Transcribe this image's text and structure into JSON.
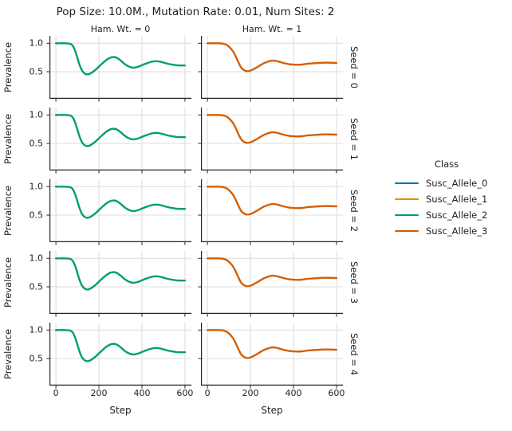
{
  "chart_data": {
    "type": "line",
    "title": "Pop Size: 10.0M., Mutation Rate: 0.01, Num Sites: 2",
    "xlabel": "Step",
    "ylabel": "Prevalence",
    "xlim": [
      -30,
      630
    ],
    "ylim": [
      0.025,
      1.13
    ],
    "xticks": [
      0,
      200,
      400,
      600
    ],
    "xtick_labels": [
      "0",
      "200",
      "400",
      "600"
    ],
    "yticks": [
      1.0,
      0.5
    ],
    "ytick_labels": [
      "1.0",
      "0.5"
    ],
    "grid": true,
    "legend_position": "right",
    "col_facets": [
      {
        "label": "Ham. Wt. = 0",
        "series": "Susc_Allele_2"
      },
      {
        "label": "Ham. Wt. = 1",
        "series": "Susc_Allele_3"
      }
    ],
    "row_facets": [
      "Seed = 0",
      "Seed = 1",
      "Seed = 2",
      "Seed = 3",
      "Seed = 4"
    ],
    "legend": {
      "title": "Class",
      "entries": [
        {
          "label": "Susc_Allele_0",
          "color": "#0173b2"
        },
        {
          "label": "Susc_Allele_1",
          "color": "#de8f05"
        },
        {
          "label": "Susc_Allele_2",
          "color": "#029e73"
        },
        {
          "label": "Susc_Allele_3",
          "color": "#d55e00"
        }
      ]
    },
    "x": [
      0,
      20,
      40,
      60,
      70,
      80,
      90,
      100,
      110,
      120,
      130,
      140,
      150,
      160,
      180,
      200,
      220,
      240,
      260,
      280,
      300,
      320,
      340,
      360,
      380,
      400,
      420,
      440,
      460,
      480,
      500,
      520,
      540,
      560,
      580,
      600
    ],
    "series": [
      {
        "name": "Susc_Allele_2",
        "color": "#029e73",
        "values": [
          1.0,
          1.0,
          1.0,
          0.995,
          0.985,
          0.945,
          0.86,
          0.74,
          0.62,
          0.53,
          0.48,
          0.457,
          0.455,
          0.468,
          0.52,
          0.59,
          0.66,
          0.72,
          0.755,
          0.75,
          0.7,
          0.635,
          0.59,
          0.572,
          0.585,
          0.615,
          0.645,
          0.67,
          0.685,
          0.68,
          0.662,
          0.64,
          0.625,
          0.614,
          0.61,
          0.61
        ]
      },
      {
        "name": "Susc_Allele_3",
        "color": "#d55e00",
        "values": [
          1.0,
          1.0,
          1.0,
          0.998,
          0.995,
          0.985,
          0.968,
          0.94,
          0.9,
          0.85,
          0.78,
          0.7,
          0.62,
          0.56,
          0.512,
          0.52,
          0.555,
          0.6,
          0.645,
          0.675,
          0.695,
          0.69,
          0.668,
          0.648,
          0.632,
          0.625,
          0.622,
          0.627,
          0.637,
          0.645,
          0.65,
          0.655,
          0.658,
          0.659,
          0.657,
          0.655
        ]
      }
    ],
    "axis_colors": {
      "spine": "#262626",
      "grid": "#dcdcdc",
      "text": "#1f1f1f"
    }
  }
}
